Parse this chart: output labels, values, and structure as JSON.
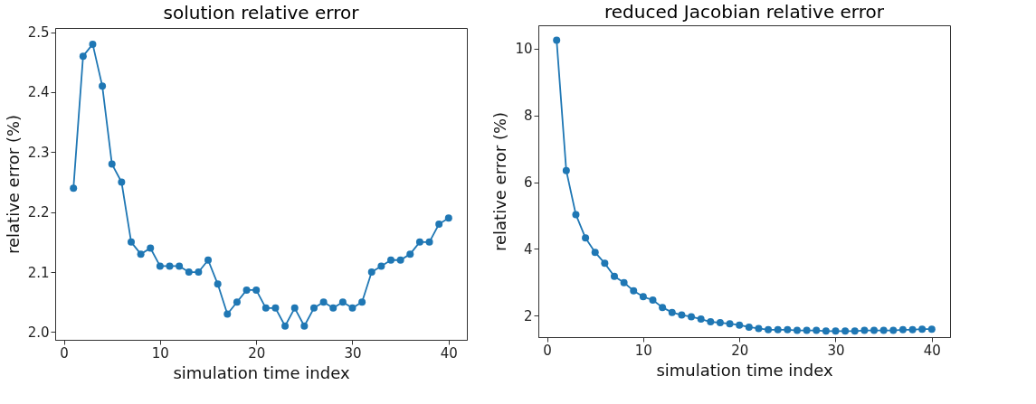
{
  "chart_data": [
    {
      "type": "line",
      "title": "solution relative error",
      "xlabel": "simulation time index",
      "ylabel": "relative error (%)",
      "marker": "circle",
      "grid": false,
      "legend": false,
      "x": [
        1,
        2,
        3,
        4,
        5,
        6,
        7,
        8,
        9,
        10,
        11,
        12,
        13,
        14,
        15,
        16,
        17,
        18,
        19,
        20,
        21,
        22,
        23,
        24,
        25,
        26,
        27,
        28,
        29,
        30,
        31,
        32,
        33,
        34,
        35,
        36,
        37,
        38,
        39,
        40
      ],
      "series": [
        {
          "color": "#1f77b4",
          "values": [
            2.24,
            2.46,
            2.48,
            2.41,
            2.28,
            2.25,
            2.15,
            2.13,
            2.14,
            2.11,
            2.11,
            2.11,
            2.1,
            2.1,
            2.12,
            2.08,
            2.03,
            2.05,
            2.07,
            2.07,
            2.04,
            2.04,
            2.01,
            2.04,
            2.01,
            2.04,
            2.05,
            2.04,
            2.05,
            2.04,
            2.05,
            2.1,
            2.11,
            2.12,
            2.12,
            2.13,
            2.15,
            2.15,
            2.18,
            2.19
          ]
        }
      ],
      "xlim": [
        -0.9,
        41.9
      ],
      "xticks": [
        0,
        10,
        20,
        30,
        40
      ],
      "ylim": [
        1.987,
        2.507
      ],
      "yticks": [
        {
          "value": 2.0,
          "label": "2.0"
        },
        2.1,
        2.2,
        2.3,
        2.4,
        2.5
      ]
    },
    {
      "type": "line",
      "title": "reduced Jacobian relative error",
      "xlabel": "simulation time index",
      "ylabel": "relative error (%)",
      "marker": "circle",
      "grid": false,
      "legend": false,
      "x": [
        1,
        2,
        3,
        4,
        5,
        6,
        7,
        8,
        9,
        10,
        11,
        12,
        13,
        14,
        15,
        16,
        17,
        18,
        19,
        20,
        21,
        22,
        23,
        24,
        25,
        26,
        27,
        28,
        29,
        30,
        31,
        32,
        33,
        34,
        35,
        36,
        37,
        38,
        39,
        40
      ],
      "series": [
        {
          "color": "#1f77b4",
          "values": [
            10.25,
            6.35,
            5.03,
            4.33,
            3.9,
            3.57,
            3.18,
            2.99,
            2.75,
            2.57,
            2.47,
            2.25,
            2.1,
            2.02,
            1.97,
            1.9,
            1.82,
            1.79,
            1.76,
            1.72,
            1.66,
            1.62,
            1.58,
            1.58,
            1.58,
            1.56,
            1.56,
            1.56,
            1.54,
            1.54,
            1.54,
            1.54,
            1.56,
            1.56,
            1.56,
            1.56,
            1.58,
            1.58,
            1.6,
            1.6
          ]
        }
      ],
      "xlim": [
        -0.9,
        41.9
      ],
      "xticks": [
        0,
        10,
        20,
        30,
        40
      ],
      "ylim": [
        1.36,
        10.7
      ],
      "yticks": [
        2,
        4,
        6,
        8,
        10
      ]
    }
  ]
}
